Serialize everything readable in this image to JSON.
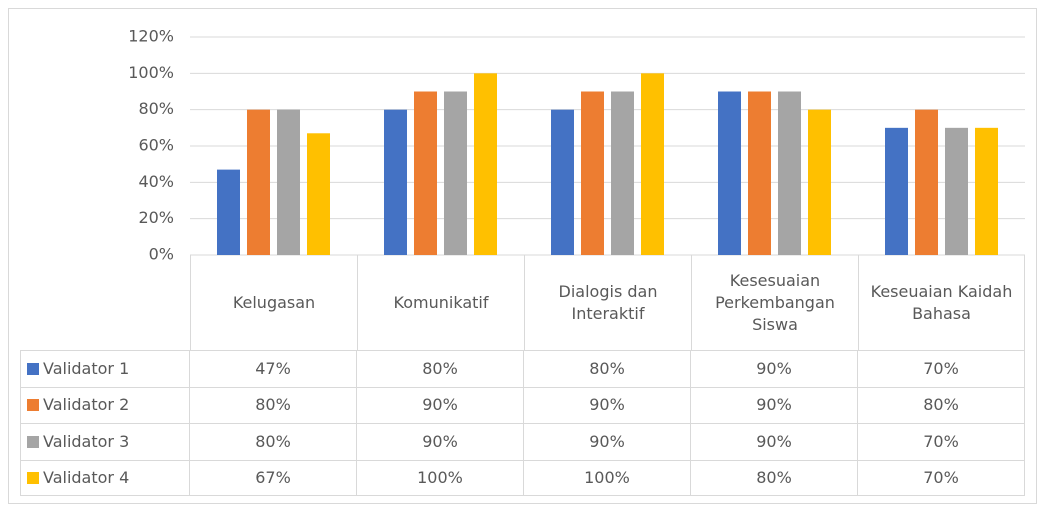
{
  "chart_data": {
    "type": "bar",
    "categories": [
      "Kelugasan",
      "Komunikatif",
      "Dialogis dan Interaktif",
      "Kesesuaian Perkembangan Siswa",
      "Keseuaian Kaidah Bahasa"
    ],
    "series": [
      {
        "name": "Validator 1",
        "color": "#4472c4",
        "values": [
          47,
          80,
          80,
          90,
          70
        ],
        "value_labels": [
          "47%",
          "80%",
          "80%",
          "90%",
          "70%"
        ]
      },
      {
        "name": "Validator 2",
        "color": "#ed7d31",
        "values": [
          80,
          90,
          90,
          90,
          80
        ],
        "value_labels": [
          "80%",
          "90%",
          "90%",
          "90%",
          "80%"
        ]
      },
      {
        "name": "Validator 3",
        "color": "#a5a5a5",
        "values": [
          80,
          90,
          90,
          90,
          70
        ],
        "value_labels": [
          "80%",
          "90%",
          "90%",
          "90%",
          "70%"
        ]
      },
      {
        "name": "Validator 4",
        "color": "#ffc000",
        "values": [
          67,
          100,
          100,
          80,
          70
        ],
        "value_labels": [
          "67%",
          "100%",
          "100%",
          "80%",
          "70%"
        ]
      }
    ],
    "ylim": [
      0,
      120
    ],
    "yticks": [
      {
        "value": 0,
        "label": "0%"
      },
      {
        "value": 20,
        "label": "20%"
      },
      {
        "value": 40,
        "label": "40%"
      },
      {
        "value": 60,
        "label": "60%"
      },
      {
        "value": 80,
        "label": "80%"
      },
      {
        "value": 100,
        "label": "100%"
      },
      {
        "value": 120,
        "label": "120%"
      }
    ],
    "grid": true
  }
}
